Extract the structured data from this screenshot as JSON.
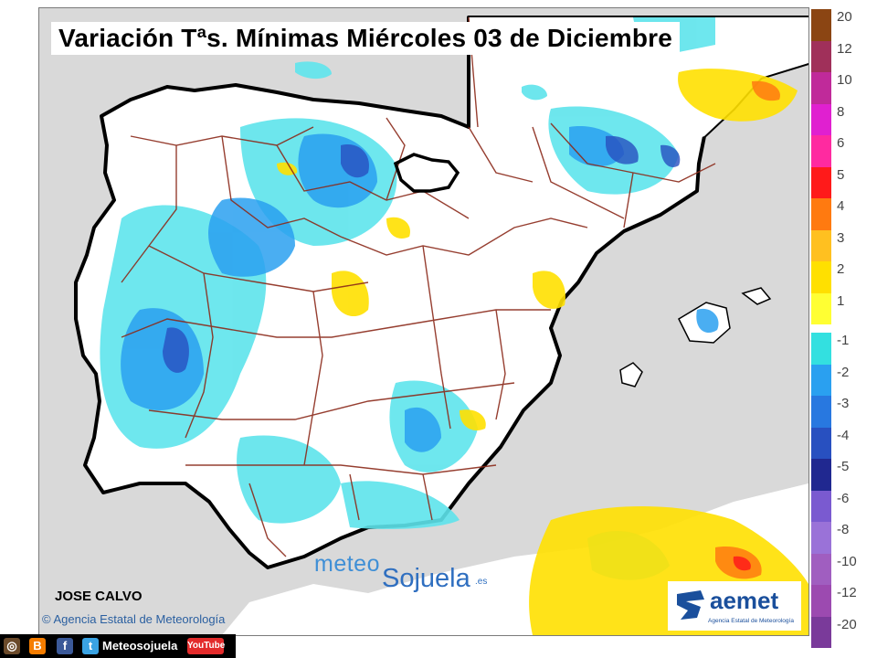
{
  "title": "Variación Tªs. Mínimas Miércoles 03 de Diciembre",
  "author": "JOSE CALVO",
  "copyright": "Agencia Estatal de Meteorología",
  "copyright_symbol": "©",
  "center_logo": {
    "part1": "meteo",
    "part2": "Sojuela",
    "suffix": ".es"
  },
  "aemet_logo": {
    "name": "aemet",
    "subtitle": "Agencia Estatal de Meteorología"
  },
  "social": {
    "handle": "Meteosojuela",
    "youtube": "YouTube",
    "icons": [
      "instagram-icon",
      "blogger-icon",
      "facebook-icon",
      "twitter-icon"
    ]
  },
  "legend": {
    "warm": [
      {
        "label": "20",
        "color": "#8b4513"
      },
      {
        "label": "12",
        "color": "#a0305a"
      },
      {
        "label": "10",
        "color": "#c02a9a"
      },
      {
        "label": "8",
        "color": "#e020d0"
      },
      {
        "label": "6",
        "color": "#ff2aa0"
      },
      {
        "label": "5",
        "color": "#ff1a1a"
      },
      {
        "label": "4",
        "color": "#ff7a10"
      },
      {
        "label": "3",
        "color": "#ffc020"
      },
      {
        "label": "2",
        "color": "#ffe000"
      },
      {
        "label": "1",
        "color": "#ffff33"
      }
    ],
    "cold": [
      {
        "label": "-1",
        "color": "#33e0e0"
      },
      {
        "label": "-2",
        "color": "#2aa0f0"
      },
      {
        "label": "-3",
        "color": "#2878e0"
      },
      {
        "label": "-4",
        "color": "#2850c0"
      },
      {
        "label": "-5",
        "color": "#202890"
      },
      {
        "label": "-6",
        "color": "#7a5ad0"
      },
      {
        "label": "-8",
        "color": "#9a72d8"
      },
      {
        "label": "-10",
        "color": "#a05ec0"
      },
      {
        "label": "-12",
        "color": "#9c4ab0"
      },
      {
        "label": "-20",
        "color": "#7a3a9a"
      }
    ]
  }
}
